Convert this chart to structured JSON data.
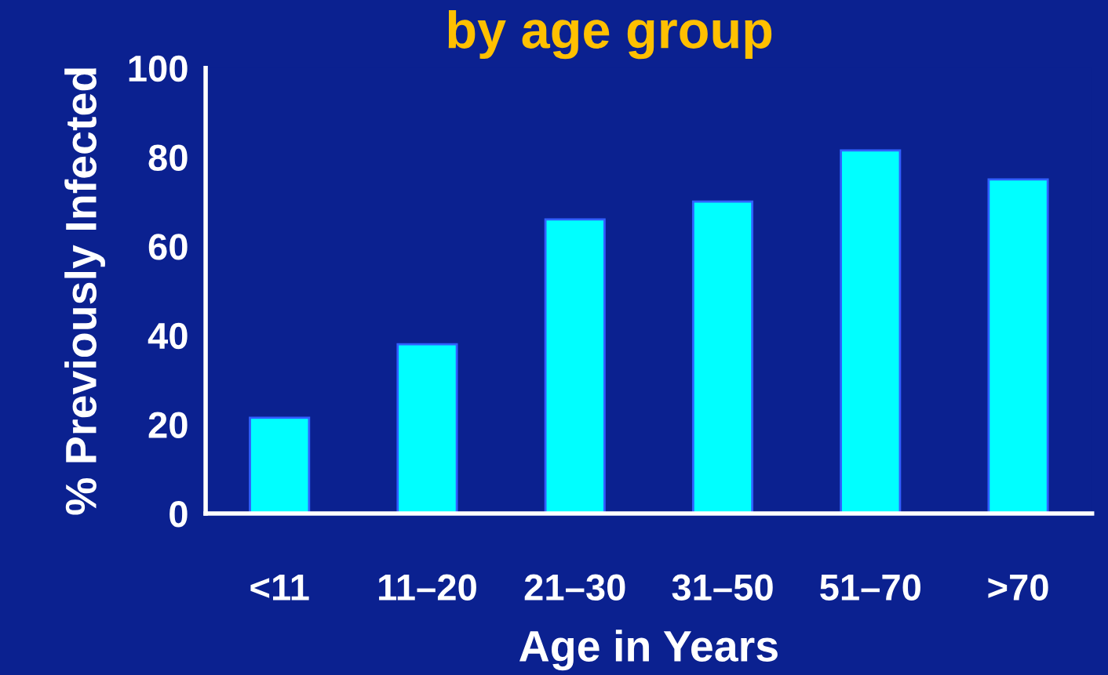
{
  "chart_data": {
    "type": "bar",
    "title": "by age group",
    "xlabel": "Age in Years",
    "ylabel": "% Previously Infected",
    "categories": [
      "<11",
      "11–20",
      "21–30",
      "31–50",
      "51–70",
      ">70"
    ],
    "values": [
      21.5,
      38,
      66,
      70,
      81.5,
      75
    ],
    "color": "#00ffff",
    "ylim": [
      0,
      100
    ],
    "yticks": [
      0,
      20,
      40,
      60,
      80,
      100
    ],
    "grid": false
  }
}
